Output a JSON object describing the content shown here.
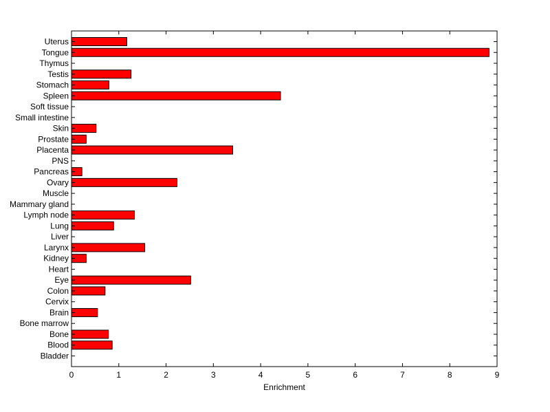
{
  "chart_data": {
    "type": "bar",
    "orientation": "horizontal",
    "title": "",
    "xlabel": "Enrichment",
    "ylabel": "",
    "xlim": [
      0,
      9
    ],
    "xticks": [
      "0",
      "1",
      "2",
      "3",
      "4",
      "5",
      "6",
      "7",
      "8",
      "9"
    ],
    "grid": false,
    "bar_color": "#ff0000",
    "categories": [
      "Uterus",
      "Tongue",
      "Thymus",
      "Testis",
      "Stomach",
      "Spleen",
      "Soft tissue",
      "Small intestine",
      "Skin",
      "Prostate",
      "Placenta",
      "PNS",
      "Pancreas",
      "Ovary",
      "Muscle",
      "Mammary gland",
      "Lymph node",
      "Lung",
      "Liver",
      "Larynx",
      "Kidney",
      "Heart",
      "Eye",
      "Colon",
      "Cervix",
      "Brain",
      "Bone marrow",
      "Bone",
      "Blood",
      "Bladder"
    ],
    "values": [
      1.17,
      8.83,
      0,
      1.26,
      0.79,
      4.42,
      0,
      0,
      0.52,
      0.31,
      3.41,
      0,
      0.22,
      2.23,
      0,
      0,
      1.33,
      0.89,
      0,
      1.55,
      0.31,
      0,
      2.52,
      0.71,
      0,
      0.55,
      0,
      0.78,
      0.86,
      0
    ]
  }
}
